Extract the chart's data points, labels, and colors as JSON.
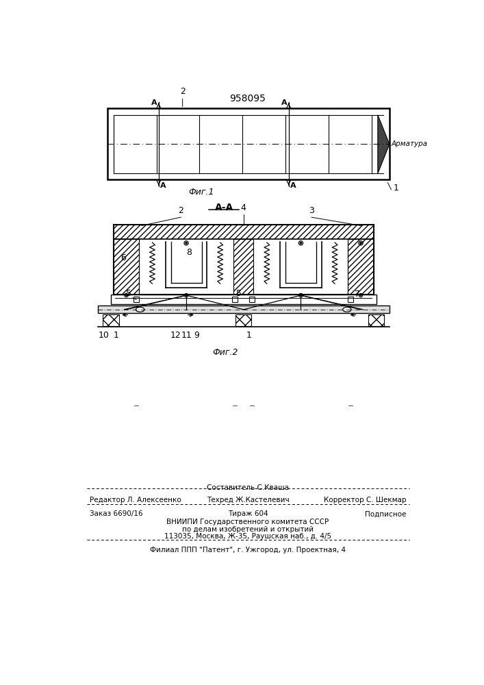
{
  "title": "958095",
  "fig1_caption": "Фиг.1",
  "fig2_caption": "Фиг.2",
  "section_label": "А-А",
  "armatura_label": "Арматура",
  "bg_color": "#ffffff",
  "line_color": "#000000",
  "footer_line1_center_top": "Составитель С.Кваша",
  "footer_line1_left": "Редактор Л. Алексеенко",
  "footer_line1_center": "Техред Ж.Кастелевич",
  "footer_line1_right": "Корректор С. Шекмар",
  "footer_line2_left": "Заказ 6690/16",
  "footer_line2_center": "Тираж 604",
  "footer_line2_right": "Подписное",
  "footer_line3": "ВНИИПИ Государственного комитета СССР",
  "footer_line4": "по делам изобретений и открытий",
  "footer_line5": "113035, Москва, Ж-35, Раушская наб., д. 4/5",
  "footer_line6": "Филиал ППП \"Патент\", г. Ужгород, ул. Проектная, 4"
}
